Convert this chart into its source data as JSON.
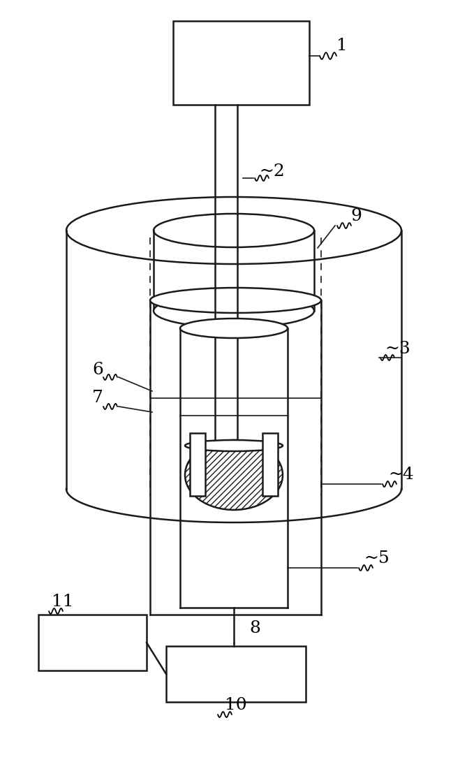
{
  "bg_color": "#ffffff",
  "line_color": "#1a1a1a",
  "figsize": [
    6.69,
    11.11
  ],
  "dpi": 100,
  "lw_main": 1.8,
  "lw_thin": 1.2,
  "label_fontsize": 18
}
